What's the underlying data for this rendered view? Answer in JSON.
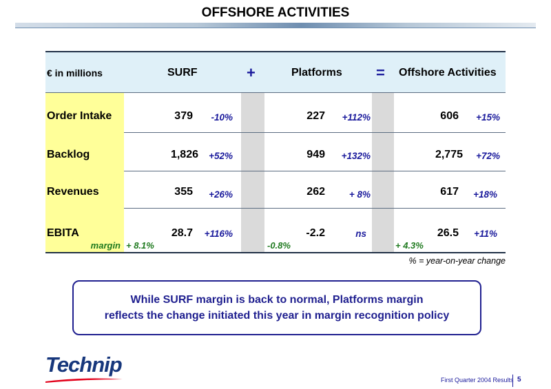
{
  "title": "OFFSHORE ACTIVITIES",
  "table": {
    "unit_label": "€ in millions",
    "col_surf": "SURF",
    "op_plus": "+",
    "col_platforms": "Platforms",
    "op_equals": "=",
    "col_offshore": "Offshore Activities",
    "rows": [
      {
        "label": "Order Intake",
        "surf": "379",
        "surf_pct": "-10%",
        "plat": "227",
        "plat_pct": "+112%",
        "off": "606",
        "off_pct": "+15%"
      },
      {
        "label": "Backlog",
        "surf": "1,826",
        "surf_pct": "+52%",
        "plat": "949",
        "plat_pct": "+132%",
        "off": "2,775",
        "off_pct": "+72%"
      },
      {
        "label": "Revenues",
        "surf": "355",
        "surf_pct": "+26%",
        "plat": "262",
        "plat_pct": "+ 8%",
        "off": "617",
        "off_pct": "+18%"
      },
      {
        "label": "EBITA",
        "surf": "28.7",
        "surf_pct": "+116%",
        "plat": "-2.2",
        "plat_pct": "ns",
        "off": "26.5",
        "off_pct": "+11%"
      }
    ],
    "margin_label": "margin",
    "margin_surf": "+ 8.1%",
    "margin_plat": "-0.8%",
    "margin_off": "+ 4.3%",
    "footnote": "% = year-on-year change"
  },
  "note": {
    "line1": "While SURF margin is back to normal, Platforms margin",
    "line2": "reflects the change initiated this year in margin recognition policy"
  },
  "footer": {
    "logo_text": "Technip",
    "caption": "First Quarter 2004 Results",
    "page": "5"
  },
  "colors": {
    "header_bg": "#dff0f8",
    "label_bg": "#ffff99",
    "separator_bg": "#dadada",
    "pct_text": "#1a1a9c",
    "margin_text": "#1f7a1f",
    "brand_blue": "#17377c",
    "brand_red": "#e2001a"
  }
}
